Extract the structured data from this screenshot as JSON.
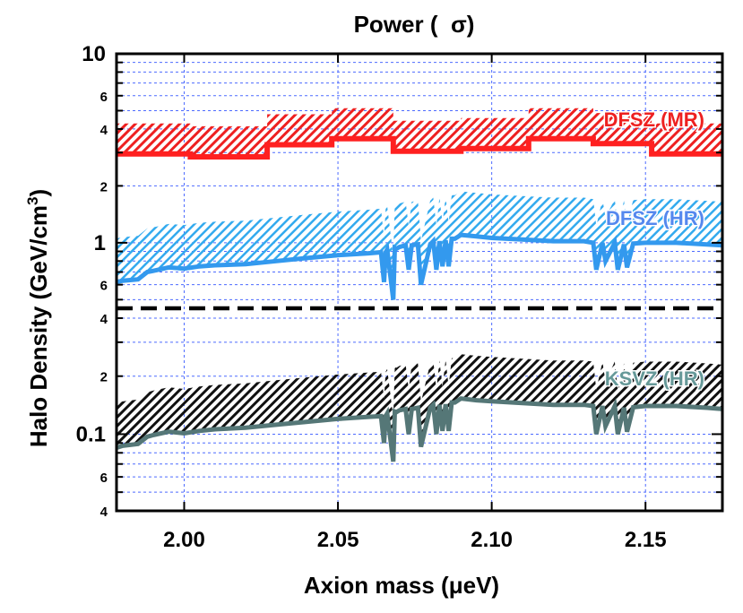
{
  "chart_data": {
    "type": "line",
    "title": "Power (  σ)",
    "xlabel": "Axion mass (μeV)",
    "ylabel": "Halo Density (GeV/cm",
    "ylabel_sup": "3",
    "ylabel_close": ")",
    "xlim": [
      1.978,
      2.175
    ],
    "x_ticks": [
      {
        "value": 2.0,
        "label": "2.00"
      },
      {
        "value": 2.05,
        "label": "2.05"
      },
      {
        "value": 2.1,
        "label": "2.10"
      },
      {
        "value": 2.15,
        "label": "2.15"
      }
    ],
    "upper_panel": {
      "scale": "log",
      "ylim": [
        0.45,
        10
      ],
      "major_ticks": [
        {
          "value": 10,
          "label": "10"
        },
        {
          "value": 1,
          "label": "1"
        }
      ],
      "minor_ticks": [
        {
          "value": 6,
          "label": "6"
        },
        {
          "value": 4,
          "label": "4"
        },
        {
          "value": 2,
          "label": "2"
        },
        {
          "value": 0.6,
          "label": "6"
        }
      ]
    },
    "lower_panel": {
      "scale": "log",
      "ylim": [
        0.04,
        0.45
      ],
      "major_ticks": [
        {
          "value": 0.1,
          "label": "0.1"
        }
      ],
      "minor_ticks": [
        {
          "value": 0.4,
          "label": "4"
        },
        {
          "value": 0.2,
          "label": "2"
        },
        {
          "value": 0.06,
          "label": "6"
        },
        {
          "value": 0.04,
          "label": "4"
        }
      ]
    },
    "series": [
      {
        "name": "DFSZ (MR)",
        "color": "#ff2020",
        "hatch_color": "#ee2020",
        "panel": "upper",
        "x": [
          1.978,
          2.002,
          2.002,
          2.027,
          2.027,
          2.048,
          2.048,
          2.068,
          2.068,
          2.09,
          2.09,
          2.112,
          2.112,
          2.133,
          2.133,
          2.152,
          2.152,
          2.175
        ],
        "y": [
          2.95,
          2.95,
          2.85,
          2.85,
          3.3,
          3.3,
          3.55,
          3.55,
          3.05,
          3.05,
          3.15,
          3.15,
          3.55,
          3.55,
          3.35,
          3.35,
          2.95,
          2.95
        ],
        "band_factor": 1.45
      },
      {
        "name": "DFSZ (HR)",
        "color": "#3399ee",
        "hatch_color": "#33aaee",
        "panel": "upper",
        "x": [
          1.978,
          1.98,
          1.985,
          1.988,
          1.99,
          1.995,
          2.0,
          2.005,
          2.01,
          2.02,
          2.03,
          2.04,
          2.05,
          2.06,
          2.064,
          2.065,
          2.0655,
          2.066,
          2.068,
          2.0685,
          2.069,
          2.07,
          2.072,
          2.073,
          2.074,
          2.076,
          2.077,
          2.08,
          2.081,
          2.082,
          2.083,
          2.084,
          2.085,
          2.086,
          2.087,
          2.088,
          2.09,
          2.095,
          2.1,
          2.11,
          2.12,
          2.13,
          2.133,
          2.134,
          2.136,
          2.137,
          2.14,
          2.141,
          2.143,
          2.144,
          2.146,
          2.15,
          2.16,
          2.17,
          2.175
        ],
        "y": [
          0.62,
          0.63,
          0.64,
          0.7,
          0.71,
          0.74,
          0.73,
          0.75,
          0.76,
          0.77,
          0.8,
          0.83,
          0.86,
          0.88,
          0.89,
          0.62,
          0.89,
          0.92,
          0.5,
          0.94,
          0.93,
          0.95,
          0.97,
          0.72,
          0.97,
          0.98,
          0.6,
          0.98,
          1.02,
          0.72,
          1.02,
          0.75,
          1.03,
          0.75,
          1.05,
          1.05,
          1.1,
          1.08,
          1.06,
          1.04,
          1.02,
          1.02,
          1.0,
          0.72,
          1.0,
          0.8,
          1.0,
          0.72,
          0.98,
          0.74,
          0.99,
          1.0,
          1.0,
          0.98,
          0.97
        ],
        "band_factor": 1.7
      },
      {
        "name": "KSVZ (HR)",
        "color": "#557777",
        "hatch_color": "#111111",
        "panel": "lower",
        "x": [
          1.978,
          1.98,
          1.985,
          1.988,
          1.99,
          1.995,
          2.0,
          2.005,
          2.01,
          2.02,
          2.03,
          2.04,
          2.05,
          2.06,
          2.064,
          2.065,
          2.0655,
          2.066,
          2.068,
          2.0685,
          2.069,
          2.07,
          2.072,
          2.073,
          2.074,
          2.076,
          2.077,
          2.08,
          2.081,
          2.082,
          2.083,
          2.084,
          2.085,
          2.086,
          2.087,
          2.088,
          2.09,
          2.095,
          2.1,
          2.11,
          2.12,
          2.13,
          2.133,
          2.134,
          2.136,
          2.137,
          2.14,
          2.141,
          2.143,
          2.144,
          2.146,
          2.15,
          2.16,
          2.17,
          2.175
        ],
        "y": [
          0.085,
          0.087,
          0.089,
          0.097,
          0.099,
          0.103,
          0.101,
          0.104,
          0.106,
          0.108,
          0.112,
          0.116,
          0.12,
          0.123,
          0.124,
          0.09,
          0.124,
          0.128,
          0.072,
          0.131,
          0.13,
          0.133,
          0.135,
          0.1,
          0.135,
          0.137,
          0.086,
          0.137,
          0.142,
          0.1,
          0.142,
          0.104,
          0.143,
          0.104,
          0.146,
          0.146,
          0.153,
          0.15,
          0.148,
          0.145,
          0.142,
          0.142,
          0.14,
          0.1,
          0.14,
          0.11,
          0.14,
          0.1,
          0.137,
          0.103,
          0.138,
          0.14,
          0.14,
          0.137,
          0.135
        ],
        "band_factor": 1.7
      }
    ]
  }
}
